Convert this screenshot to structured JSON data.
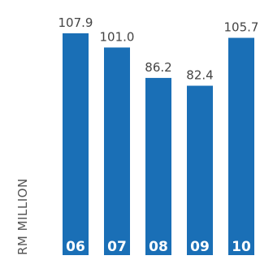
{
  "chart_data": {
    "type": "bar",
    "categories": [
      "06",
      "07",
      "08",
      "09",
      "10"
    ],
    "values": [
      107.9,
      101.0,
      86.2,
      82.4,
      105.7
    ],
    "value_labels": [
      "107.9",
      "101.0",
      "86.2",
      "82.4",
      "105.7"
    ],
    "title": "",
    "xlabel": "",
    "ylabel": "RM MILLION",
    "ylim": [
      0,
      110
    ],
    "grid": false,
    "legend": "none",
    "bar_color": "#1a6fb6"
  }
}
